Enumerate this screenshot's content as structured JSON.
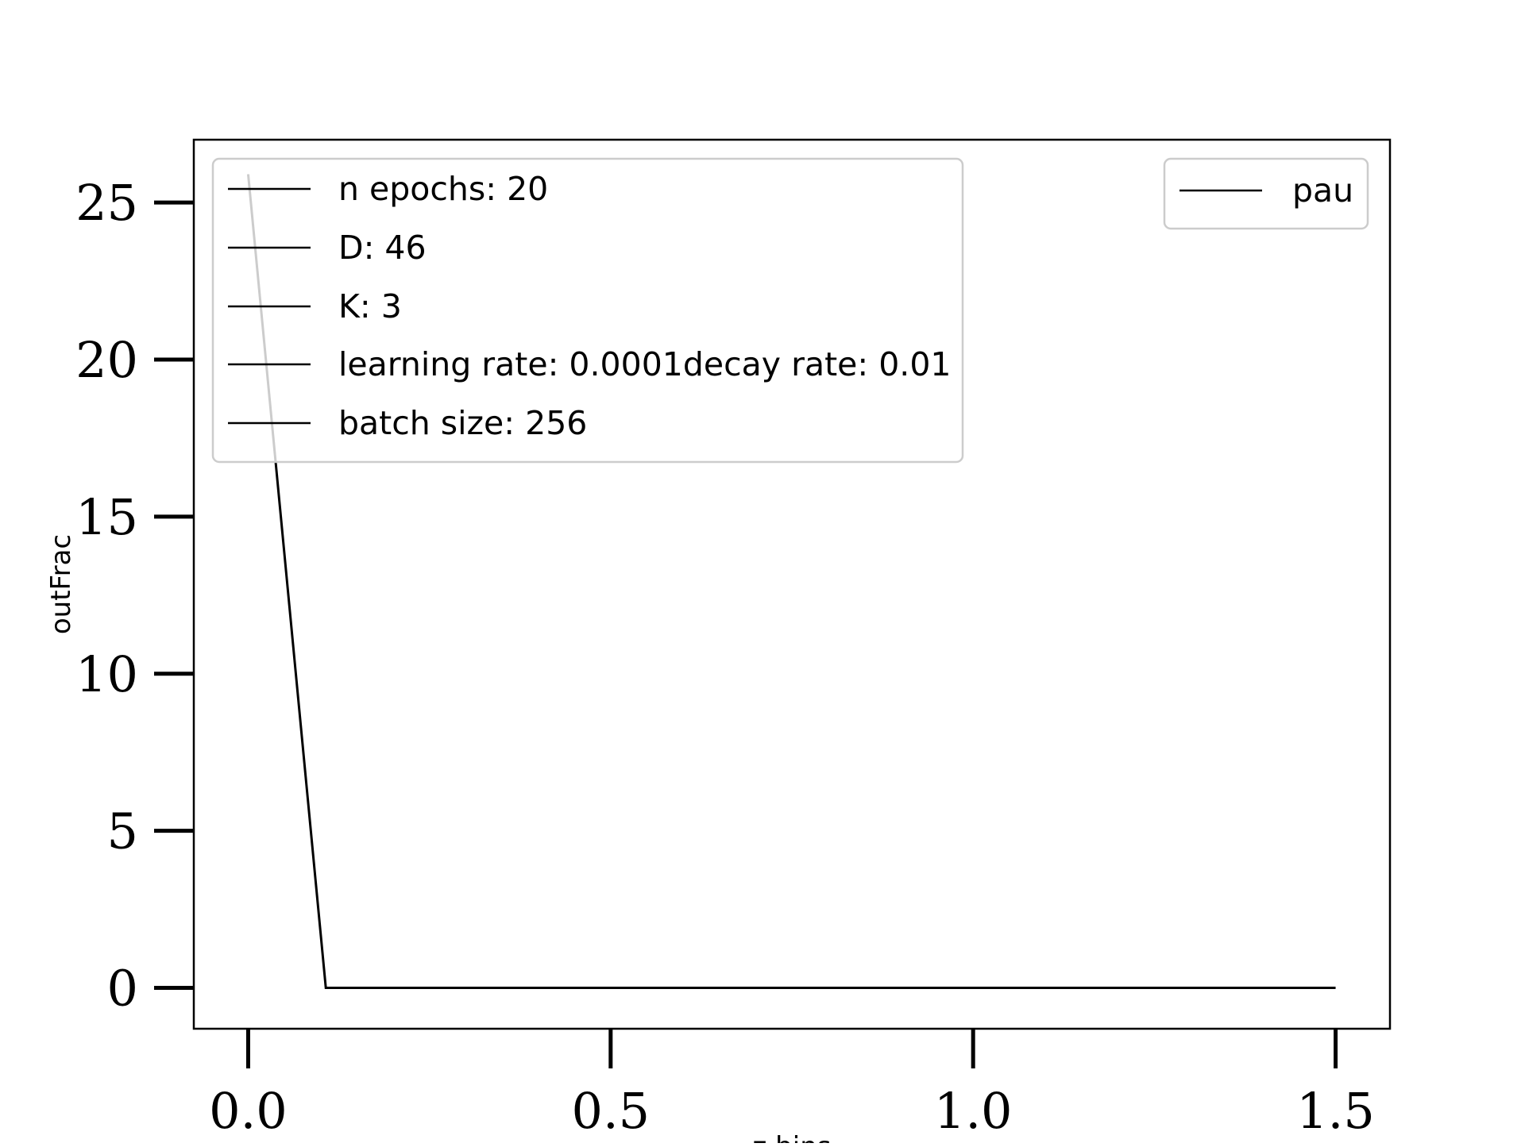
{
  "chart_data": {
    "type": "line",
    "title": "",
    "xlabel": "z bins",
    "ylabel": "outFrac",
    "xlim": [
      -0.075,
      1.575
    ],
    "ylim": [
      -1.3,
      27
    ],
    "xticks": [
      0.0,
      0.5,
      1.0,
      1.5
    ],
    "xtick_labels": [
      "0.0",
      "0.5",
      "1.0",
      "1.5"
    ],
    "yticks": [
      0,
      5,
      10,
      15,
      20,
      25
    ],
    "ytick_labels": [
      "0",
      "5",
      "10",
      "15",
      "20",
      "25"
    ],
    "grid": false,
    "line_color": "#000000",
    "series": [
      {
        "name": "pau",
        "x": [
          0.0,
          0.1071,
          0.2143,
          0.3214,
          0.4286,
          0.5357,
          0.6429,
          0.75,
          0.8571,
          0.9643,
          1.0714,
          1.1786,
          1.2857,
          1.3929,
          1.5
        ],
        "y": [
          25.9,
          0,
          0,
          0,
          0,
          0,
          0,
          0,
          0,
          0,
          0,
          0,
          0,
          0,
          0
        ]
      }
    ],
    "legends": [
      {
        "placement": "upper left",
        "entries": [
          "n epochs: 20",
          "D: 46",
          "K: 3",
          "learning rate: 0.0001decay rate: 0.01",
          "batch size: 256"
        ]
      },
      {
        "placement": "upper right",
        "entries": [
          "pau"
        ]
      }
    ]
  }
}
